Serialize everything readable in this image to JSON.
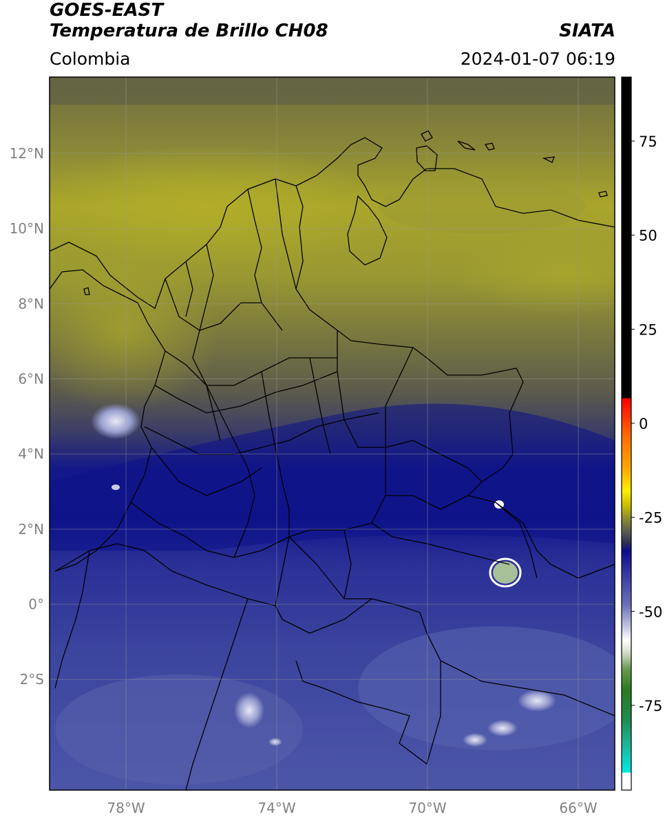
{
  "header": {
    "satellite": "GOES-EAST",
    "product": "Temperatura de Brillo CH08",
    "brand": "SIATA",
    "region": "Colombia",
    "timestamp": "2024-01-07 06:19"
  },
  "map": {
    "lon_range": [
      -80,
      -65
    ],
    "lat_range": [
      -5,
      14
    ],
    "lat_ticks": [
      {
        "value": 12,
        "label": "12°N"
      },
      {
        "value": 10,
        "label": "10°N"
      },
      {
        "value": 8,
        "label": "8°N"
      },
      {
        "value": 6,
        "label": "6°N"
      },
      {
        "value": 4,
        "label": "4°N"
      },
      {
        "value": 2,
        "label": "2°N"
      },
      {
        "value": 0,
        "label": "0°"
      },
      {
        "value": -2,
        "label": "2°S"
      }
    ],
    "lon_ticks": [
      {
        "value": -78,
        "label": "78°W"
      },
      {
        "value": -74,
        "label": "74°W"
      },
      {
        "value": -70,
        "label": "70°W"
      },
      {
        "value": -66,
        "label": "66°W"
      }
    ],
    "grid": true
  },
  "colorbar": {
    "range": [
      -95,
      90
    ],
    "ticks": [
      {
        "value": 75,
        "label": "75"
      },
      {
        "value": 50,
        "label": "50"
      },
      {
        "value": 25,
        "label": "25"
      },
      {
        "value": 0,
        "label": "0"
      },
      {
        "value": -25,
        "label": "-25"
      },
      {
        "value": -50,
        "label": "-50"
      },
      {
        "value": -75,
        "label": "-75"
      }
    ]
  },
  "colors": {
    "olive_high": "#a8a628",
    "olive_dark": "#6b6a3a",
    "navy": "#10148a",
    "blue_mid": "#3c46a0",
    "blue_light": "#5a64b0"
  }
}
